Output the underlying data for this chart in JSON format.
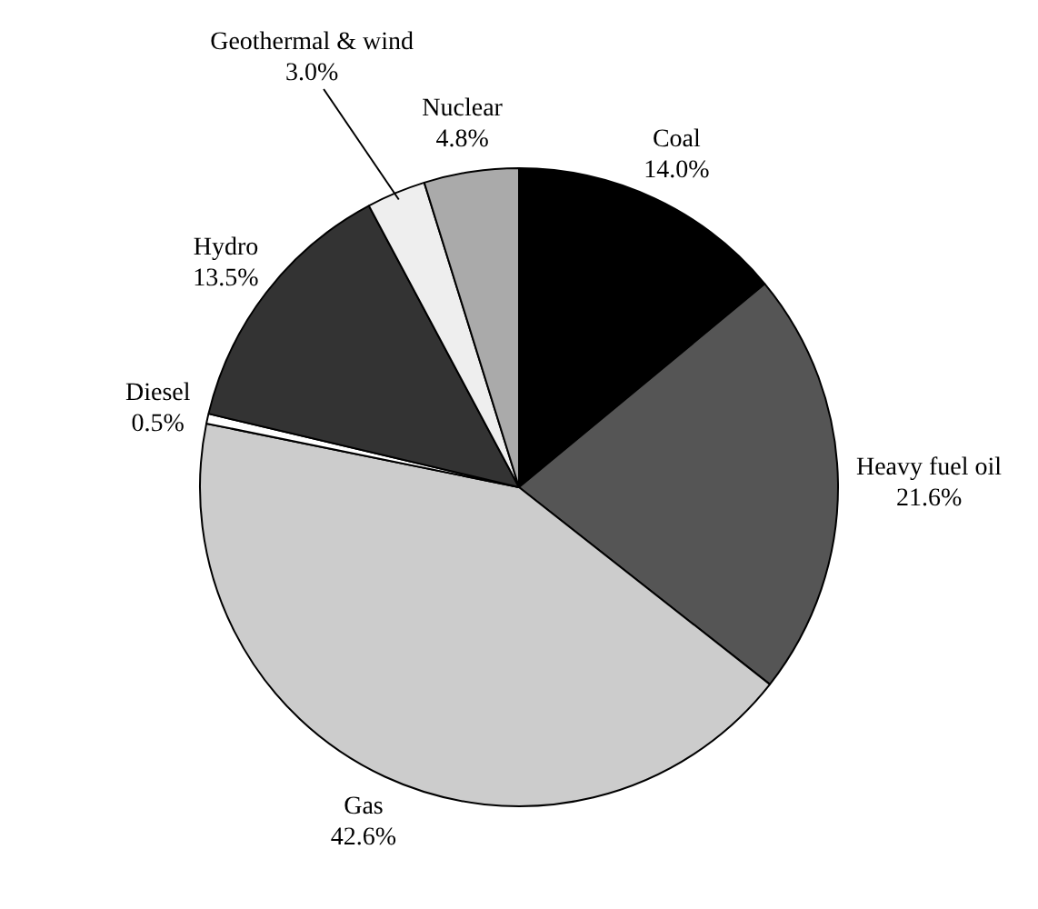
{
  "chart_data": {
    "type": "pie",
    "categories": [
      "Coal",
      "Heavy fuel oil",
      "Gas",
      "Diesel",
      "Hydro",
      "Geothermal & wind",
      "Nuclear"
    ],
    "values": [
      14.0,
      21.6,
      42.6,
      0.5,
      13.5,
      3.0,
      4.8
    ],
    "value_labels": [
      "14.0%",
      "21.6%",
      "42.6%",
      "0.5%",
      "13.5%",
      "3.0%",
      "4.8%"
    ],
    "colors": [
      "#000000",
      "#555555",
      "#cccccc",
      "#ffffff",
      "#333333",
      "#eeeeee",
      "#aaaaaa"
    ],
    "legend": false
  }
}
